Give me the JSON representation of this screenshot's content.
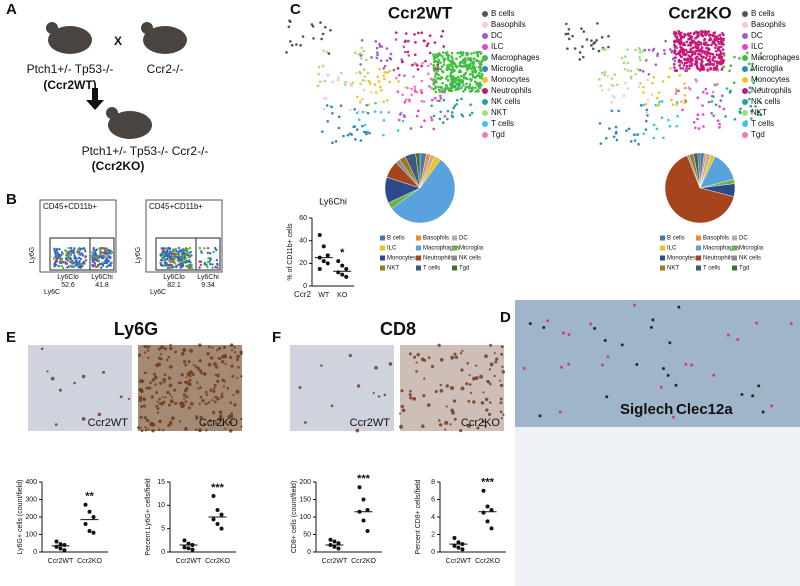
{
  "panels": {
    "A": {
      "label": "A",
      "parent1": "Ptch1+/- Tp53-/-",
      "parent1_name": "(Ccr2WT)",
      "cross": "X",
      "parent2": "Ccr2-/-",
      "offspring": "Ptch1+/- Tp53-/- Ccr2-/-",
      "offspring_name": "(Ccr2KO)"
    },
    "B": {
      "label": "B",
      "y_axis": "Ly6G",
      "x_axis": "Ly6C",
      "flow": [
        {
          "title": "CD45+CD11b+",
          "gates": [
            {
              "name": "Ly6Clo",
              "value": 52.6
            },
            {
              "name": "Ly6Chi",
              "value": 41.8
            }
          ]
        },
        {
          "title": "CD45+CD11b+",
          "gates": [
            {
              "name": "Ly6Clo",
              "value": 82.1
            },
            {
              "name": "Ly6Chi",
              "value": 9.34
            }
          ]
        }
      ]
    },
    "C": {
      "label": "C",
      "titles": [
        "Ccr2WT",
        "Ccr2KO"
      ],
      "umap_legend": {
        "names": [
          "B cells",
          "Basophils",
          "DC",
          "ILC",
          "Macrophages",
          "Microglia",
          "Monocytes",
          "Neutrophils",
          "NK cells",
          "NKT",
          "T cells",
          "Tgd"
        ],
        "colors": [
          "#555555",
          "#f2c9d6",
          "#a05cc8",
          "#e63fd8",
          "#3fbf3f",
          "#2f86c6",
          "#e8c52a",
          "#c8177a",
          "#2aa198",
          "#9be37a",
          "#37c6e6",
          "#f07ab8"
        ]
      }
    },
    "D": {
      "label": "D",
      "stain1": "Siglech",
      "stain2": "Clec12a"
    },
    "E": {
      "label": "E",
      "title": "Ly6G",
      "images": [
        "Ccr2WT",
        "Ccr2KO"
      ]
    },
    "F": {
      "label": "F",
      "title": "CD8",
      "images": [
        "Ccr2WT",
        "Ccr2KO"
      ]
    }
  },
  "chart_data": [
    {
      "type": "dot",
      "title": "Ly6Chi",
      "ylabel": "% of CD11b+ cells",
      "xlabel": "Ccr2",
      "categories": [
        "WT",
        "KO"
      ],
      "groups": [
        [
          45,
          35,
          27,
          25,
          22,
          20,
          15
        ],
        [
          22,
          18,
          15,
          12,
          10,
          8
        ]
      ],
      "means": [
        25,
        13
      ],
      "significance": "*",
      "ylim": [
        0,
        60
      ],
      "yticks": [
        0,
        20,
        40,
        60
      ]
    },
    {
      "type": "dot",
      "ylabel": "Ly6G+ cells (count/field)",
      "categories": [
        "Ccr2WT",
        "Ccr2KO"
      ],
      "groups": [
        [
          60,
          45,
          40,
          30,
          20,
          10
        ],
        [
          270,
          230,
          200,
          160,
          120,
          110
        ]
      ],
      "means": [
        35,
        185
      ],
      "significance": "**",
      "ylim": [
        0,
        400
      ],
      "yticks": [
        0,
        100,
        200,
        300,
        400
      ]
    },
    {
      "type": "dot",
      "ylabel": "Percent Ly6G+ cells/field",
      "categories": [
        "Ccr2WT",
        "Ccr2KO"
      ],
      "groups": [
        [
          2.5,
          1.8,
          1.5,
          1,
          0.8,
          0.5
        ],
        [
          12,
          9,
          8,
          7,
          6,
          5
        ]
      ],
      "means": [
        1.5,
        7.5
      ],
      "significance": "***",
      "ylim": [
        0,
        15
      ],
      "yticks": [
        0,
        5,
        10,
        15
      ]
    },
    {
      "type": "dot",
      "ylabel": "CD8+ cells (count/field)",
      "categories": [
        "Ccr2WT",
        "Ccr2KO"
      ],
      "groups": [
        [
          35,
          30,
          25,
          20,
          15,
          10
        ],
        [
          185,
          150,
          120,
          115,
          90,
          60
        ]
      ],
      "means": [
        20,
        115
      ],
      "significance": "***",
      "ylim": [
        0,
        200
      ],
      "yticks": [
        0,
        50,
        100,
        150,
        200
      ]
    },
    {
      "type": "dot",
      "ylabel": "Percent CD8+ cells/field",
      "categories": [
        "Ccr2WT",
        "Ccr2KO"
      ],
      "groups": [
        [
          1.6,
          1.1,
          0.9,
          0.7,
          0.5,
          0.3
        ],
        [
          7,
          5.2,
          4.8,
          4.5,
          3.5,
          2.7
        ]
      ],
      "means": [
        0.9,
        4.6
      ],
      "significance": "***",
      "ylim": [
        0,
        8
      ],
      "yticks": [
        0,
        2,
        4,
        6,
        8
      ]
    },
    {
      "type": "pie",
      "categories": [
        "B cells",
        "Basophils",
        "DC",
        "ILC",
        "Macrophages",
        "Microglia",
        "Monocytes",
        "Neutrophils",
        "NK cells",
        "NKT",
        "T cells",
        "Tgd"
      ],
      "colors": [
        "#4a78b0",
        "#f08a2c",
        "#b0b0b0",
        "#f2c21b",
        "#5aa2dd",
        "#6cb24c",
        "#2a4a8a",
        "#a5441d",
        "#8c8c8c",
        "#9e7a1c",
        "#3a5a80",
        "#3f6e2e"
      ],
      "values": [
        3,
        2,
        2,
        3,
        55,
        3,
        12,
        8,
        2,
        3,
        5,
        2
      ]
    },
    {
      "type": "pie",
      "categories": [
        "B cells",
        "Basophils",
        "DC",
        "ILC",
        "Macrophages",
        "Microglia",
        "Monocytes",
        "Neutrophils",
        "NK cells",
        "NKT",
        "T cells",
        "Tgd"
      ],
      "colors": [
        "#4a78b0",
        "#f08a2c",
        "#b0b0b0",
        "#f2c21b",
        "#5aa2dd",
        "#6cb24c",
        "#2a4a8a",
        "#a5441d",
        "#8c8c8c",
        "#9e7a1c",
        "#3a5a80",
        "#3f6e2e"
      ],
      "values": [
        2,
        1,
        2,
        2,
        14,
        2,
        6,
        65,
        1,
        2,
        2,
        1
      ]
    }
  ]
}
